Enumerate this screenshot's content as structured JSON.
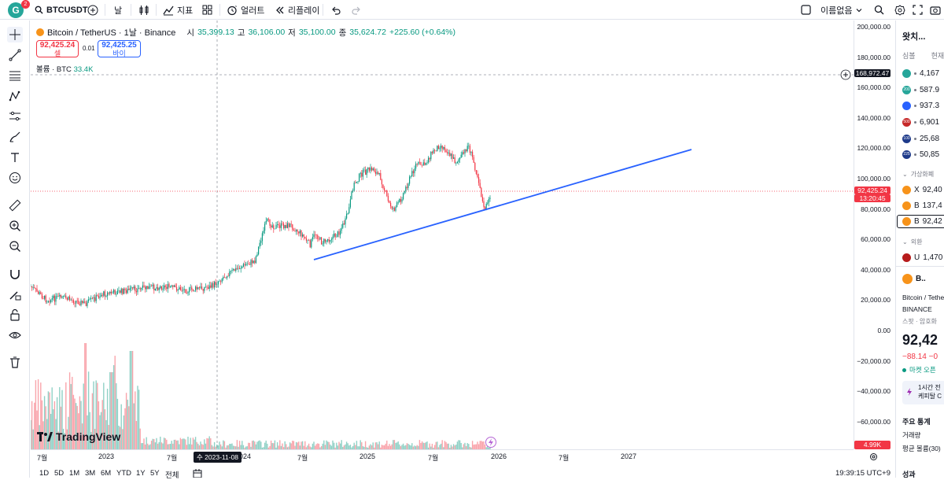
{
  "topbar": {
    "avatar_letter": "G",
    "avatar_badge": "2",
    "symbol": "BTCUSDT",
    "interval": "날",
    "indicators_label": "지표",
    "alert_label": "얼러트",
    "replay_label": "리플레이",
    "layout_name": "이름없음"
  },
  "legend": {
    "symbol": "Bitcoin / TetherUS · 1날 · Binance",
    "open_label": "시",
    "open": "35,399.13",
    "high_label": "고",
    "high": "36,106.00",
    "low_label": "저",
    "low": "35,100.00",
    "close_label": "종",
    "close": "35,624.72",
    "change": "+225.60 (+0.64%)"
  },
  "trade": {
    "sell_price": "92,425.24",
    "sell_label": "셀",
    "spread": "0.01",
    "buy_price": "92,425.25",
    "buy_label": "바이"
  },
  "volume": {
    "label": "볼륨 · BTC",
    "value": "33.4K"
  },
  "yaxis": {
    "labels": [
      "200,000.00",
      "180,000.00",
      "160,000.00",
      "140,000.00",
      "120,000.00",
      "100,000.00",
      "80,000.00",
      "60,000.00",
      "40,000.00",
      "20,000.00",
      "0.00",
      "−20,000.00",
      "−40,000.00",
      "−60,000.00"
    ],
    "crosshair_price": "168,972.47",
    "last_price": "92,425.24",
    "countdown": "13:20:45",
    "volume_tag": "4.99K"
  },
  "xaxis": {
    "labels": [
      "7월",
      "2023",
      "7월",
      "2024",
      "7월",
      "2025",
      "7월",
      "2026",
      "7월",
      "2027"
    ],
    "crosshair_date": "수 2023-11-08"
  },
  "bottombar": {
    "ranges": [
      "1D",
      "5D",
      "1M",
      "3M",
      "6M",
      "YTD",
      "1Y",
      "5Y",
      "전체"
    ],
    "clock": "19:39:15 UTC+9"
  },
  "branding": {
    "logo_text": "TradingView"
  },
  "watchlist": {
    "title": "왓치...",
    "col_symbol": "심볼",
    "col_last": "현재",
    "rows": [
      {
        "badge": "",
        "value": "4,167"
      },
      {
        "badge": "200",
        "value": "587.9"
      },
      {
        "badge": "",
        "value": "937.3"
      },
      {
        "badge": "500",
        "value": "6,901"
      },
      {
        "badge": "100",
        "value": "25,68"
      },
      {
        "badge": "225",
        "value": "50,85"
      }
    ],
    "section_crypto": "가상화폐",
    "crypto": [
      {
        "letter": "X",
        "value": "92,40"
      },
      {
        "letter": "B",
        "value": "137,4"
      },
      {
        "letter": "B",
        "value": "92,42"
      }
    ],
    "section_fx": "외환",
    "fx": [
      {
        "letter": "U",
        "value": "1,470"
      }
    ]
  },
  "details": {
    "short": "B..",
    "name": "Bitcoin / Tether",
    "exchange": "BINANCE",
    "type": "스팟 · 암호화",
    "price": "92,42",
    "change": "−88.14 −0",
    "market_status": "마켓 오픈",
    "news_line1": "1시간 전",
    "news_line2": "케피탈 C",
    "stats_title": "주요 통계",
    "stat1": "거래량",
    "stat2": "평균 볼륨(30)",
    "perf_title": "성과"
  },
  "colors": {
    "up": "#089981",
    "down": "#f23645",
    "trend": "#2962ff",
    "accent": "#2962ff"
  }
}
